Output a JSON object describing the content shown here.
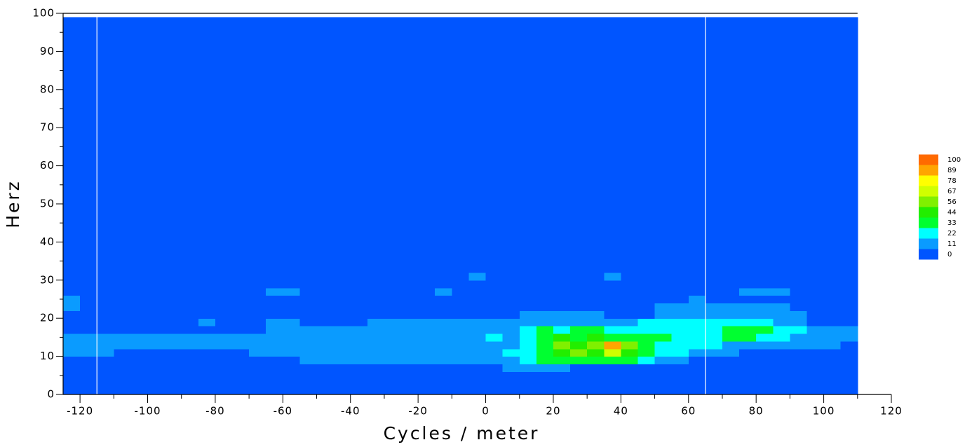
{
  "chart_data": {
    "type": "contour",
    "x_label": "Cycles / meter",
    "y_label": "Herz",
    "xlim": [
      -125,
      120
    ],
    "ylim": [
      0,
      100
    ],
    "xticks": [
      -120,
      -100,
      -80,
      -60,
      -40,
      -20,
      0,
      20,
      40,
      60,
      80,
      100,
      120
    ],
    "xminorticks": [
      -110,
      -90,
      -70,
      -50,
      -30,
      -10,
      10,
      30,
      50,
      70,
      90,
      110
    ],
    "yticks": [
      0,
      10,
      20,
      30,
      40,
      50,
      60,
      70,
      80,
      90,
      100
    ],
    "yminorticks": [
      5,
      15,
      25,
      35,
      45,
      55,
      65,
      75,
      85,
      95
    ],
    "levels": [
      0,
      11,
      22,
      33,
      44,
      56,
      67,
      78,
      89,
      100
    ],
    "level_colors": [
      "#0055ff",
      "#0a9bff",
      "#00ffff",
      "#00ff30",
      "#22ee00",
      "#80f000",
      "#d0ff00",
      "#ffff00",
      "#ffa500",
      "#ff6a00"
    ],
    "vlines": [
      -115,
      65
    ],
    "x_edges": [
      -125,
      -120,
      -115,
      -110,
      -105,
      -100,
      -95,
      -90,
      -85,
      -80,
      -75,
      -70,
      -65,
      -60,
      -55,
      -50,
      -45,
      -40,
      -35,
      -30,
      -25,
      -20,
      -15,
      -10,
      -5,
      0,
      5,
      10,
      15,
      20,
      25,
      30,
      35,
      40,
      45,
      50,
      55,
      60,
      65,
      70,
      75,
      80,
      85,
      90,
      95,
      100,
      105,
      110
    ],
    "y_edges": [
      0,
      6,
      8,
      10,
      12,
      14,
      16,
      18,
      20,
      22,
      24,
      26,
      28,
      30,
      32,
      99
    ],
    "z": [
      [
        5,
        5,
        5,
        5,
        5,
        5,
        5,
        5,
        5,
        5,
        5,
        5,
        5,
        5,
        5,
        5,
        5,
        5,
        5,
        5,
        5,
        5,
        5,
        5,
        5,
        5,
        5,
        5,
        5,
        5,
        5,
        5,
        5,
        5,
        5,
        5,
        5,
        5,
        5,
        5,
        5,
        5,
        5,
        5,
        5,
        5,
        5
      ],
      [
        5,
        5,
        5,
        5,
        5,
        5,
        5,
        5,
        5,
        5,
        5,
        5,
        5,
        5,
        5,
        5,
        5,
        5,
        5,
        5,
        5,
        5,
        5,
        5,
        5,
        5,
        15,
        15,
        15,
        15,
        5,
        5,
        5,
        5,
        5,
        5,
        5,
        5,
        5,
        5,
        5,
        5,
        5,
        5,
        5,
        5,
        5
      ],
      [
        5,
        5,
        5,
        5,
        5,
        5,
        5,
        5,
        5,
        5,
        5,
        5,
        5,
        5,
        15,
        15,
        15,
        15,
        15,
        15,
        15,
        15,
        15,
        15,
        15,
        15,
        15,
        25,
        38,
        38,
        38,
        38,
        38,
        38,
        25,
        15,
        15,
        5,
        5,
        5,
        5,
        5,
        5,
        5,
        5,
        5,
        5
      ],
      [
        15,
        15,
        15,
        5,
        5,
        5,
        5,
        5,
        5,
        5,
        5,
        15,
        15,
        15,
        15,
        15,
        15,
        15,
        15,
        15,
        15,
        15,
        15,
        15,
        15,
        15,
        25,
        25,
        38,
        50,
        60,
        50,
        72,
        50,
        38,
        25,
        25,
        15,
        15,
        15,
        5,
        5,
        5,
        5,
        5,
        5,
        5
      ],
      [
        15,
        15,
        15,
        15,
        15,
        15,
        15,
        15,
        15,
        15,
        15,
        15,
        15,
        15,
        15,
        15,
        15,
        15,
        15,
        15,
        15,
        15,
        15,
        15,
        15,
        15,
        15,
        25,
        38,
        60,
        50,
        60,
        94,
        60,
        38,
        25,
        25,
        25,
        25,
        15,
        15,
        15,
        15,
        15,
        15,
        15,
        5
      ],
      [
        15,
        15,
        15,
        15,
        15,
        15,
        15,
        15,
        15,
        15,
        15,
        15,
        15,
        15,
        15,
        15,
        15,
        15,
        15,
        15,
        15,
        15,
        15,
        15,
        15,
        25,
        15,
        25,
        38,
        50,
        38,
        50,
        38,
        38,
        38,
        38,
        25,
        25,
        25,
        38,
        38,
        25,
        25,
        15,
        15,
        15,
        15
      ],
      [
        5,
        5,
        5,
        5,
        5,
        5,
        5,
        5,
        5,
        5,
        5,
        5,
        15,
        15,
        15,
        15,
        15,
        15,
        15,
        15,
        15,
        15,
        15,
        15,
        15,
        15,
        15,
        25,
        38,
        25,
        38,
        38,
        25,
        25,
        25,
        25,
        25,
        25,
        25,
        38,
        38,
        38,
        25,
        25,
        15,
        15,
        15
      ],
      [
        5,
        5,
        5,
        5,
        5,
        5,
        5,
        5,
        15,
        5,
        5,
        5,
        15,
        15,
        5,
        5,
        5,
        5,
        15,
        15,
        15,
        15,
        15,
        15,
        15,
        15,
        15,
        15,
        15,
        15,
        15,
        15,
        15,
        15,
        25,
        25,
        25,
        25,
        25,
        25,
        25,
        25,
        15,
        15,
        5,
        5,
        5
      ],
      [
        5,
        5,
        5,
        5,
        5,
        5,
        5,
        5,
        5,
        5,
        5,
        5,
        5,
        5,
        5,
        5,
        5,
        5,
        5,
        5,
        5,
        5,
        5,
        5,
        5,
        5,
        5,
        15,
        15,
        15,
        15,
        15,
        5,
        5,
        5,
        15,
        15,
        15,
        15,
        15,
        15,
        15,
        15,
        15,
        5,
        5,
        5
      ],
      [
        15,
        5,
        5,
        5,
        5,
        5,
        5,
        5,
        5,
        5,
        5,
        5,
        5,
        5,
        5,
        5,
        5,
        5,
        5,
        5,
        5,
        5,
        5,
        5,
        5,
        5,
        5,
        5,
        5,
        5,
        5,
        5,
        5,
        5,
        5,
        15,
        15,
        15,
        15,
        15,
        15,
        15,
        15,
        5,
        5,
        5,
        5
      ],
      [
        15,
        5,
        5,
        5,
        5,
        5,
        5,
        5,
        5,
        5,
        5,
        5,
        5,
        5,
        5,
        5,
        5,
        5,
        5,
        5,
        5,
        5,
        5,
        5,
        5,
        5,
        5,
        5,
        5,
        5,
        5,
        5,
        5,
        5,
        5,
        5,
        5,
        15,
        5,
        5,
        5,
        5,
        5,
        5,
        5,
        5,
        5
      ],
      [
        5,
        5,
        5,
        5,
        5,
        5,
        5,
        5,
        5,
        5,
        5,
        5,
        15,
        15,
        5,
        5,
        5,
        5,
        5,
        5,
        5,
        5,
        15,
        5,
        5,
        5,
        5,
        5,
        5,
        5,
        5,
        5,
        5,
        5,
        5,
        5,
        5,
        5,
        5,
        5,
        15,
        15,
        15,
        5,
        5,
        5,
        5
      ],
      [
        5,
        5,
        5,
        5,
        5,
        5,
        5,
        5,
        5,
        5,
        5,
        5,
        5,
        5,
        5,
        5,
        5,
        5,
        5,
        5,
        5,
        5,
        5,
        5,
        5,
        5,
        5,
        5,
        5,
        5,
        5,
        5,
        5,
        5,
        5,
        5,
        5,
        5,
        5,
        5,
        5,
        5,
        5,
        5,
        5,
        5,
        5
      ],
      [
        5,
        5,
        5,
        5,
        5,
        5,
        5,
        5,
        5,
        5,
        5,
        5,
        5,
        5,
        5,
        5,
        5,
        5,
        5,
        5,
        5,
        5,
        5,
        5,
        15,
        5,
        5,
        5,
        5,
        5,
        5,
        5,
        15,
        5,
        5,
        5,
        5,
        5,
        5,
        5,
        5,
        5,
        5,
        5,
        5,
        5,
        5
      ],
      [
        5,
        5,
        5,
        5,
        5,
        5,
        5,
        5,
        5,
        5,
        5,
        5,
        5,
        5,
        5,
        5,
        5,
        5,
        5,
        5,
        5,
        5,
        5,
        5,
        5,
        5,
        5,
        5,
        5,
        5,
        5,
        5,
        5,
        5,
        5,
        5,
        5,
        5,
        5,
        5,
        5,
        5,
        5,
        5,
        5,
        5,
        5
      ]
    ]
  }
}
